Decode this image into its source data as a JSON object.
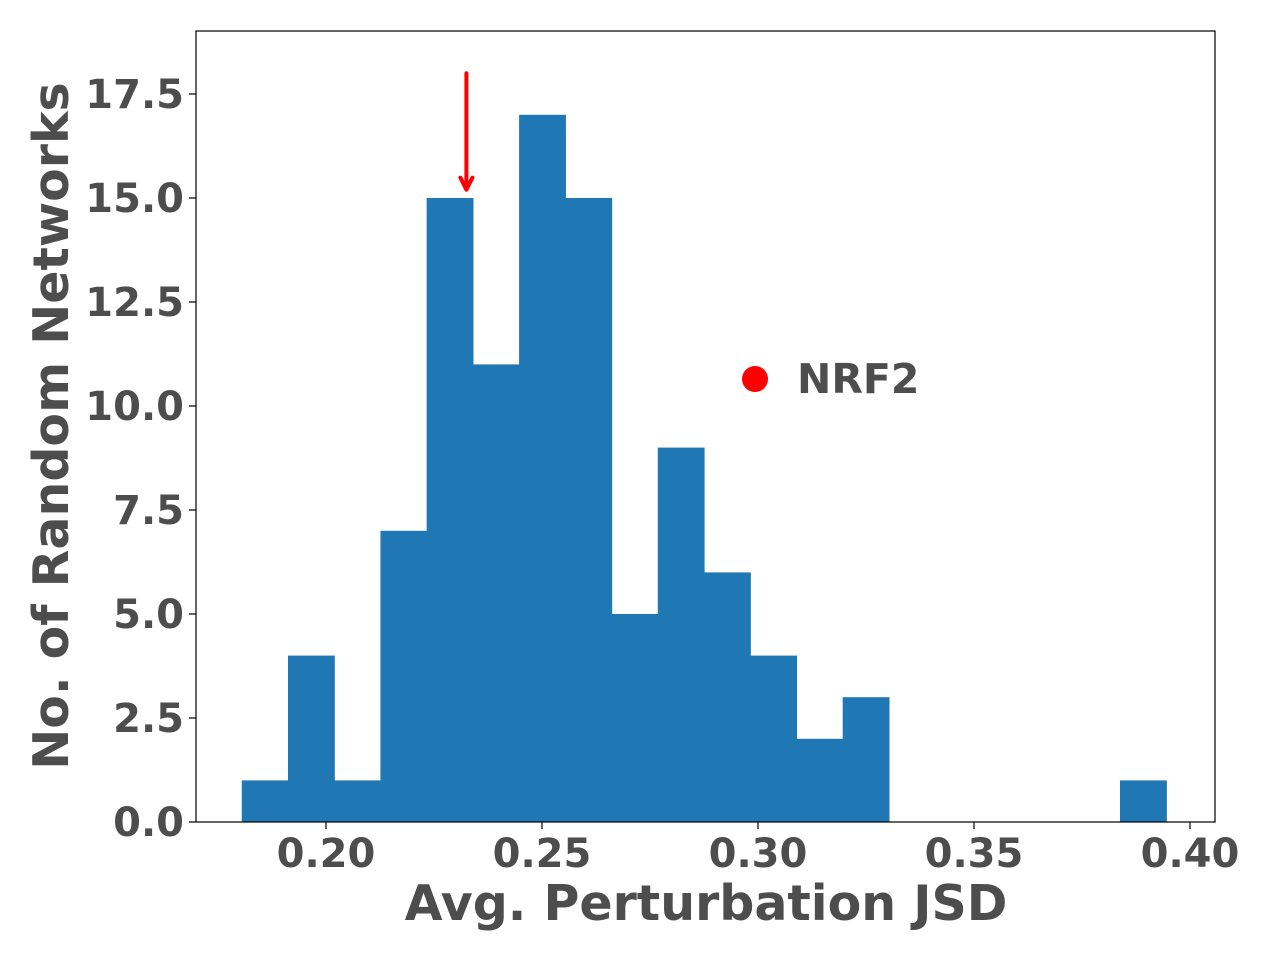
{
  "chart_data": {
    "type": "bar",
    "subtype": "histogram",
    "xlabel": "Avg. Perturbation JSD",
    "ylabel": "No. of Random Networks",
    "xlim": [
      0.17,
      0.405
    ],
    "ylim": [
      0,
      19
    ],
    "bar_color": "#1f77b4",
    "bin_width": 0.0107,
    "bins": [
      {
        "start": 0.1805,
        "value": 1
      },
      {
        "start": 0.1912,
        "value": 4
      },
      {
        "start": 0.2019,
        "value": 1
      },
      {
        "start": 0.2126,
        "value": 7
      },
      {
        "start": 0.2233,
        "value": 15
      },
      {
        "start": 0.234,
        "value": 11
      },
      {
        "start": 0.2447,
        "value": 17
      },
      {
        "start": 0.2554,
        "value": 15
      },
      {
        "start": 0.2661,
        "value": 5
      },
      {
        "start": 0.2768,
        "value": 9
      },
      {
        "start": 0.2875,
        "value": 6
      },
      {
        "start": 0.2982,
        "value": 4
      },
      {
        "start": 0.3089,
        "value": 2
      },
      {
        "start": 0.3196,
        "value": 3
      },
      {
        "start": 0.3303,
        "value": 0
      },
      {
        "start": 0.341,
        "value": 0
      },
      {
        "start": 0.3517,
        "value": 0
      },
      {
        "start": 0.3624,
        "value": 0
      },
      {
        "start": 0.3731,
        "value": 0
      },
      {
        "start": 0.3838,
        "value": 1
      }
    ],
    "xticks": [
      {
        "value": 0.2,
        "label": "0.20"
      },
      {
        "value": 0.25,
        "label": "0.25"
      },
      {
        "value": 0.3,
        "label": "0.30"
      },
      {
        "value": 0.35,
        "label": "0.35"
      },
      {
        "value": 0.4,
        "label": "0.40"
      }
    ],
    "yticks": [
      {
        "value": 0,
        "label": "0.0"
      },
      {
        "value": 2.5,
        "label": "2.5"
      },
      {
        "value": 5,
        "label": "5.0"
      },
      {
        "value": 7.5,
        "label": "7.5"
      },
      {
        "value": 10,
        "label": "10.0"
      },
      {
        "value": 12.5,
        "label": "12.5"
      },
      {
        "value": 15,
        "label": "15.0"
      },
      {
        "value": 17.5,
        "label": "17.5"
      }
    ],
    "arrow": {
      "x": 0.2325,
      "y_from": 18.0,
      "y_to": 15.2,
      "color": "#ff0000"
    },
    "legend": {
      "label": "NRF2",
      "color": "#ff0000",
      "placement": "center-right"
    }
  }
}
